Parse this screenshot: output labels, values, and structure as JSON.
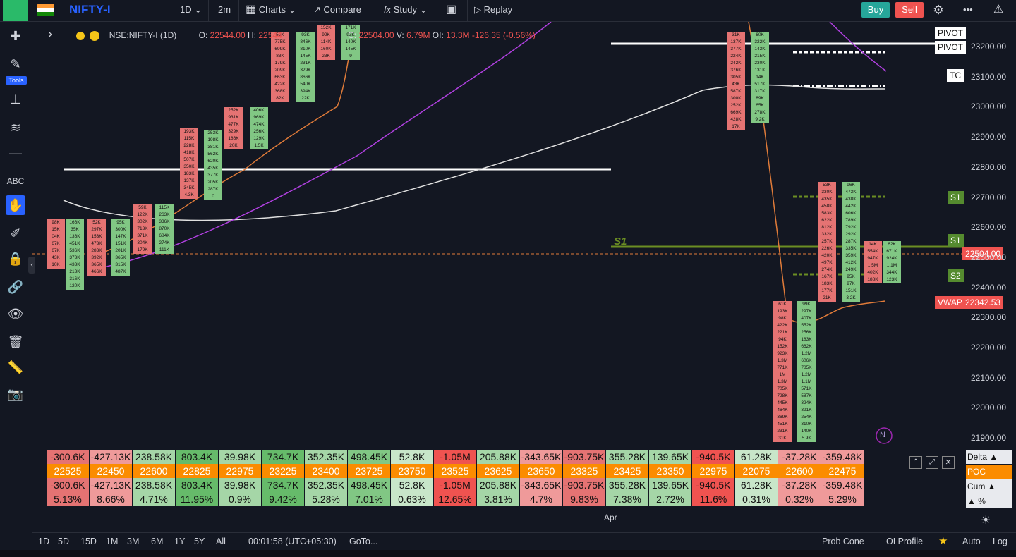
{
  "topbar": {
    "symbol": "NIFTY-I",
    "interval": "1D",
    "chart_interval": "2m",
    "charts_label": "Charts",
    "compare_label": "Compare",
    "study_label": "Study",
    "replay_label": "Replay",
    "buy_label": "Buy",
    "sell_label": "Sell",
    "more_label": "•••"
  },
  "left_toolbar": {
    "tools_badge": "Tools"
  },
  "legend": {
    "symbol": "NSE:NIFTY-I (1D)",
    "o_label": "O:",
    "o": "22544.00",
    "h_label": "H:",
    "h": "22544",
    "c_label": "C:",
    "c": "22504.00",
    "v_label": "V:",
    "v": "6.79M",
    "oi_label": "OI:",
    "oi": "13.3M",
    "chg": "-126.35",
    "chg_pct": "(-0.56%)"
  },
  "price_axis": {
    "ticks": [
      "23200.00",
      "23100.00",
      "23000.00",
      "22900.00",
      "22800.00",
      "22700.00",
      "22600.00",
      "22500.00",
      "22400.00",
      "22300.00",
      "22200.00",
      "22100.00",
      "22000.00",
      "21900.00"
    ],
    "current_price": "22504.00",
    "vwap_label": "VWAP",
    "vwap_value": "22342.53"
  },
  "pivot_labels": {
    "pivot1": "PIVOT",
    "pivot2": "PIVOT",
    "tc": "TC",
    "s1_a": "S1",
    "s1_b": "S1",
    "s2": "S2",
    "s1_chart": "S1"
  },
  "footprint_columns": [
    {
      "cells": [
        "98K",
        "15K",
        "04K",
        "67K",
        "67K",
        "43K",
        "10K"
      ],
      "color": "#e57373"
    },
    {
      "cells": [
        "166K",
        "35K",
        "136K",
        "451K",
        "536K",
        "373K",
        "433K",
        "213K",
        "316K",
        "120K"
      ],
      "color": "#81c784"
    },
    {
      "cells": [
        "52K",
        "297K",
        "153K",
        "473K",
        "283K",
        "392K",
        "365K",
        "466K"
      ],
      "color": "#e57373"
    },
    {
      "cells": [
        "95K",
        "300K",
        "147K",
        "151K",
        "201K",
        "365K",
        "315K",
        "487K"
      ],
      "color": "#81c784"
    },
    {
      "cells": [
        "59K",
        "122K",
        "302K",
        "713K",
        "371K",
        "304K",
        "179K"
      ],
      "color": "#e57373"
    },
    {
      "cells": [
        "115K",
        "263K",
        "336K",
        "870K",
        "684K",
        "274K",
        "111K"
      ],
      "color": "#81c784"
    },
    {
      "cells": [
        "193K",
        "115K",
        "228K",
        "418K",
        "507K",
        "350K",
        "183K",
        "137K",
        "345K",
        "4.3K"
      ],
      "color": "#e57373"
    },
    {
      "cells": [
        "253K",
        "198K",
        "381K",
        "562K",
        "620K",
        "435K",
        "377K",
        "205K",
        "287K",
        "0"
      ],
      "color": "#81c784"
    },
    {
      "cells": [
        "252K",
        "931K",
        "477K",
        "329K",
        "186K",
        "20K"
      ],
      "color": "#e57373"
    },
    {
      "cells": [
        "406K",
        "969K",
        "474K",
        "256K",
        "129K",
        "1.5K"
      ],
      "color": "#81c784"
    },
    {
      "cells": [
        "52K",
        "775K",
        "699K",
        "83K",
        "179K",
        "209K",
        "663K",
        "422K",
        "368K",
        "82K"
      ],
      "color": "#e57373"
    },
    {
      "cells": [
        "93K",
        "846K",
        "810K",
        "145K",
        "231K",
        "329K",
        "866K",
        "540K",
        "394K",
        "22K"
      ],
      "color": "#81c784"
    },
    {
      "cells": [
        "152K",
        "92K",
        "114K",
        "160K",
        "23K"
      ],
      "color": "#e57373"
    },
    {
      "cells": [
        "171K",
        "93K",
        "140K",
        "145K",
        "9"
      ],
      "color": "#81c784"
    },
    {
      "cells": [
        "31K",
        "137K",
        "377K",
        "224K",
        "242K",
        "376K",
        "305K",
        "43K",
        "587K",
        "300K",
        "252K",
        "669K",
        "428K",
        "17K"
      ],
      "color": "#e57373"
    },
    {
      "cells": [
        "60K",
        "322K",
        "143K",
        "215K",
        "230K",
        "131K",
        "14K",
        "517K",
        "317K",
        "89K",
        "65K",
        "278K",
        "9.2K"
      ],
      "color": "#81c784"
    },
    {
      "cells": [
        "61K",
        "193K",
        "98K",
        "422K",
        "221K",
        "94K",
        "152K",
        "923K",
        "1.3M",
        "771K",
        "1M",
        "1.3M",
        "705K",
        "728K",
        "445K",
        "464K",
        "369K",
        "451K",
        "231K",
        "31K"
      ],
      "color": "#e57373"
    },
    {
      "cells": [
        "99K",
        "297K",
        "407K",
        "552K",
        "256K",
        "183K",
        "662K",
        "1.2M",
        "606K",
        "785K",
        "1.2M",
        "1.1M",
        "571K",
        "587K",
        "324K",
        "391K",
        "254K",
        "310K",
        "140K",
        "5.9K"
      ],
      "color": "#81c784"
    },
    {
      "cells": [
        "53K",
        "330K",
        "435K",
        "458K",
        "583K",
        "622K",
        "812K",
        "332K",
        "257K",
        "226K",
        "420K",
        "497K",
        "274K",
        "167K",
        "183K",
        "177K",
        "21K"
      ],
      "color": "#e57373"
    },
    {
      "cells": [
        "96K",
        "473K",
        "438K",
        "442K",
        "606K",
        "789K",
        "792K",
        "292K",
        "287K",
        "335K",
        "359K",
        "412K",
        "249K",
        "95K",
        "97K",
        "151K",
        "3.2K"
      ],
      "color": "#81c784"
    },
    {
      "cells": [
        "14K",
        "554K",
        "947K",
        "1.5M",
        "402K",
        "188K"
      ],
      "color": "#e57373"
    },
    {
      "cells": [
        "62K",
        "671K",
        "924K",
        "1.1M",
        "344K",
        "123K"
      ],
      "color": "#81c784"
    }
  ],
  "stats_table": {
    "delta": [
      "-300.6K",
      "-427.13K",
      "238.58K",
      "803.4K",
      "39.98K",
      "734.7K",
      "352.35K",
      "498.45K",
      "52.8K",
      "-1.05M",
      "205.88K",
      "-343.65K",
      "-903.75K",
      "355.28K",
      "139.65K",
      "-940.5K",
      "61.28K",
      "-37.28K",
      "-359.48K"
    ],
    "poc": [
      "22525",
      "22450",
      "22600",
      "22825",
      "22975",
      "23225",
      "23400",
      "23725",
      "23750",
      "23525",
      "23625",
      "23650",
      "23325",
      "23425",
      "23350",
      "22975",
      "22075",
      "22600",
      "22475"
    ],
    "cum": [
      "-300.6K",
      "-427.13K",
      "238.58K",
      "803.4K",
      "39.98K",
      "734.7K",
      "352.35K",
      "498.45K",
      "52.8K",
      "-1.05M",
      "205.88K",
      "-343.65K",
      "-903.75K",
      "355.28K",
      "139.65K",
      "-940.5K",
      "61.28K",
      "-37.28K",
      "-359.48K"
    ],
    "pct": [
      "5.13%",
      "8.66%",
      "4.71%",
      "11.95%",
      "0.9%",
      "9.42%",
      "5.28%",
      "7.01%",
      "0.63%",
      "12.65%",
      "3.81%",
      "4.7%",
      "9.83%",
      "7.38%",
      "2.72%",
      "11.6%",
      "0.31%",
      "0.32%",
      "5.29%"
    ],
    "row_labels": [
      "Delta ▲",
      "POC",
      "Cum ▲",
      "▲ %"
    ],
    "delta_colors": [
      "#e57373",
      "#ef9a9a",
      "#a5d6a7",
      "#66bb6a",
      "#a5d6a7",
      "#66bb6a",
      "#a5d6a7",
      "#81c784",
      "#c8e6c9",
      "#ef5350",
      "#a5d6a7",
      "#ef9a9a",
      "#e57373",
      "#a5d6a7",
      "#a5d6a7",
      "#ef5350",
      "#c8e6c9",
      "#ef9a9a",
      "#ef9a9a"
    ]
  },
  "x_axis": {
    "apr_label": "Apr"
  },
  "bottombar": {
    "ranges": [
      "1D",
      "5D",
      "15D",
      "1M",
      "3M",
      "6M",
      "1Y",
      "5Y",
      "All"
    ],
    "clock": "00:01:58 (UTC+05:30)",
    "goto": "GoTo...",
    "prob_cone": "Prob Cone",
    "oi_profile": "OI Profile",
    "auto": "Auto",
    "log": "Log"
  },
  "badge_n": "N"
}
